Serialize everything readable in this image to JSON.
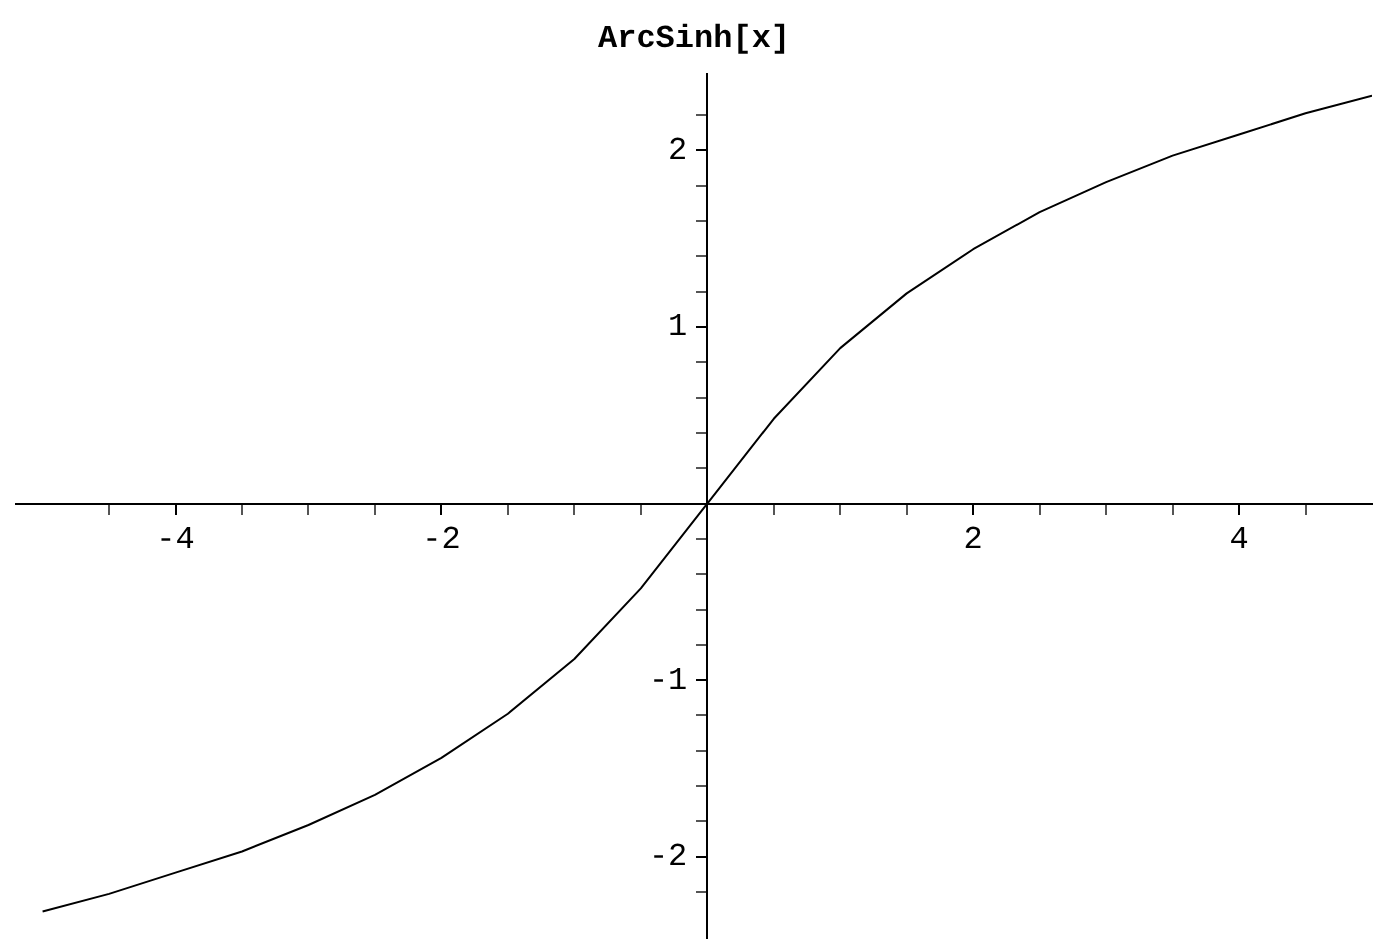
{
  "chart_data": {
    "type": "line",
    "title": "ArcSinh[x]",
    "x": [
      -5,
      -4.5,
      -4,
      -3.5,
      -3,
      -2.5,
      -2,
      -1.5,
      -1,
      -0.5,
      0,
      0.5,
      1,
      1.5,
      2,
      2.5,
      3,
      3.5,
      4,
      4.5,
      5
    ],
    "series": [
      {
        "color": "#000000",
        "values": [
          -2.31,
          -2.21,
          -2.09,
          -1.97,
          -1.82,
          -1.65,
          -1.44,
          -1.19,
          -0.88,
          -0.48,
          0,
          0.48,
          0.88,
          1.19,
          1.44,
          1.65,
          1.82,
          1.97,
          2.09,
          2.21,
          2.31
        ]
      }
    ],
    "xlim": [
      -5.2,
      5
    ],
    "ylim": [
      -2.46,
      2.43
    ],
    "xticks": [
      {
        "value": -4.5,
        "label": null
      },
      -4,
      {
        "value": -3.5,
        "label": null
      },
      {
        "value": -3,
        "label": null
      },
      {
        "value": -2.5,
        "label": null
      },
      -2,
      {
        "value": -1.5,
        "label": null
      },
      {
        "value": -1,
        "label": null
      },
      {
        "value": -0.5,
        "label": null
      },
      {
        "value": 0.5,
        "label": null
      },
      {
        "value": 1,
        "label": null
      },
      {
        "value": 1.5,
        "label": null
      },
      2,
      {
        "value": 2.5,
        "label": null
      },
      {
        "value": 3,
        "label": null
      },
      {
        "value": 3.5,
        "label": null
      },
      4,
      {
        "value": 4.5,
        "label": null
      }
    ],
    "yticks": [
      {
        "value": -2.2,
        "label": null
      },
      -2,
      {
        "value": -1.8,
        "label": null
      },
      {
        "value": -1.6,
        "label": null
      },
      {
        "value": -1.4,
        "label": null
      },
      {
        "value": -1.2,
        "label": null
      },
      -1,
      {
        "value": -0.8,
        "label": null
      },
      {
        "value": -0.6,
        "label": null
      },
      {
        "value": -0.4,
        "label": null
      },
      {
        "value": -0.2,
        "label": null
      },
      {
        "value": 0.2,
        "label": null
      },
      {
        "value": 0.4,
        "label": null
      },
      {
        "value": 0.6,
        "label": null
      },
      {
        "value": 0.8,
        "label": null
      },
      1,
      {
        "value": 1.2,
        "label": null
      },
      {
        "value": 1.4,
        "label": null
      },
      {
        "value": 1.6,
        "label": null
      },
      {
        "value": 1.8,
        "label": null
      },
      2,
      {
        "value": 2.2,
        "label": null
      }
    ],
    "grid": false,
    "legend": false,
    "marker": "none",
    "line_style": "solid"
  }
}
